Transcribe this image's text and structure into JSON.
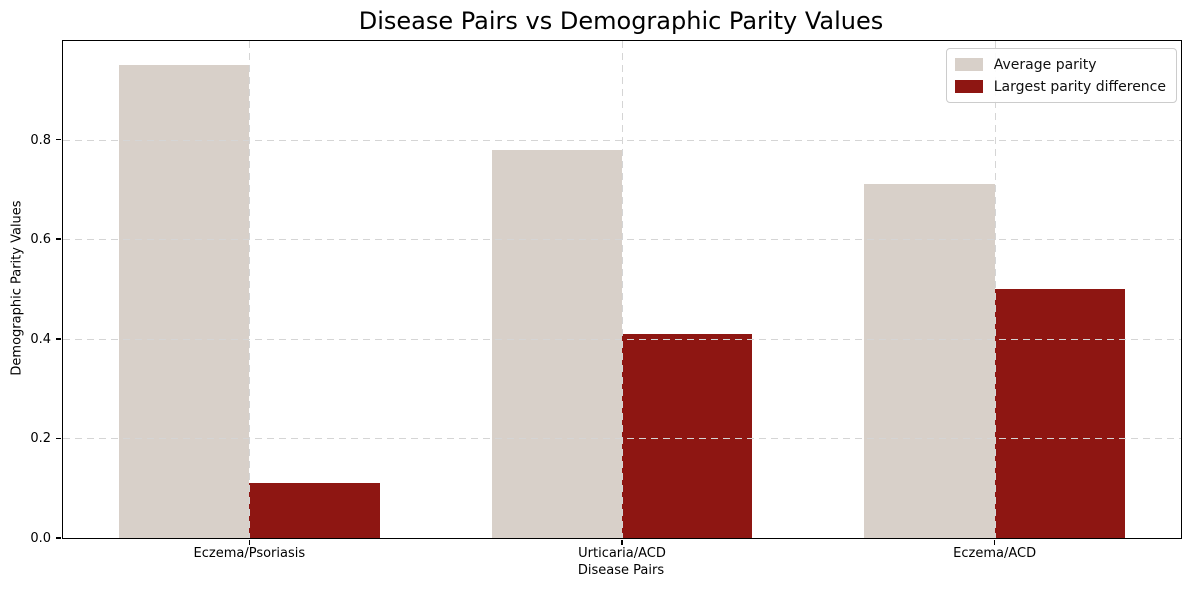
{
  "chart_data": {
    "type": "bar",
    "title": "Disease Pairs vs Demographic Parity Values",
    "xlabel": "Disease Pairs",
    "ylabel": "Demographic Parity Values",
    "categories": [
      "Eczema/Psoriasis",
      "Urticaria/ACD",
      "Eczema/ACD"
    ],
    "series": [
      {
        "name": "Average parity",
        "color": "#d8d0c9",
        "values": [
          0.95,
          0.78,
          0.71
        ]
      },
      {
        "name": "Largest parity difference",
        "color": "#8e1612",
        "values": [
          0.11,
          0.41,
          0.5
        ]
      }
    ],
    "yticks": [
      "0.0",
      "0.2",
      "0.4",
      "0.6",
      "0.8"
    ],
    "ylim": [
      0,
      0.998
    ],
    "bar_width_fraction": 0.35,
    "grid": "dashed gridlines on both axes, drawn above bars",
    "legend_position": "upper right"
  }
}
